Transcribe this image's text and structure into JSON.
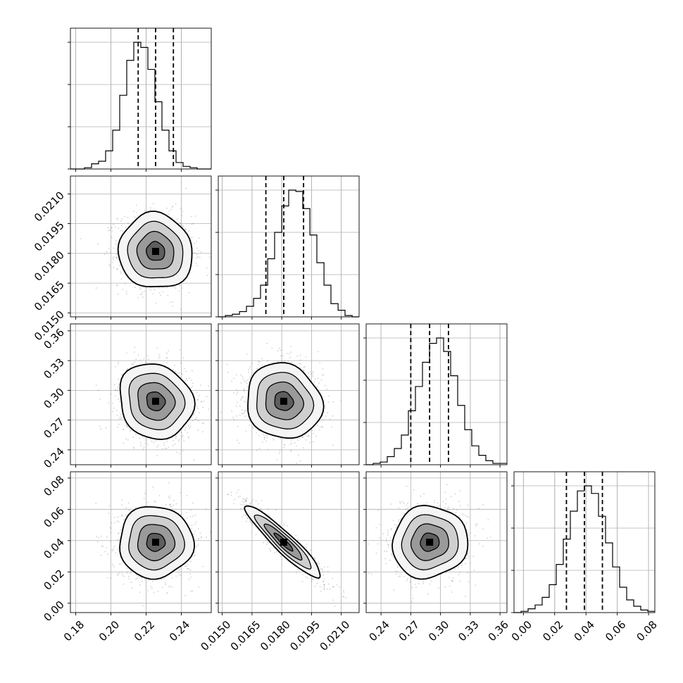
{
  "chart_data": {
    "type": "corner",
    "parameters": [
      {
        "range": [
          0.177,
          0.257
        ],
        "ticks": [
          0.18,
          0.2,
          0.22,
          0.24
        ],
        "tick_labels": [
          "0.18",
          "0.20",
          "0.22",
          "0.24"
        ],
        "quantiles": [
          0.2155,
          0.2254,
          0.2355
        ],
        "mean": 0.2254,
        "sd": 0.0105
      },
      {
        "range": [
          0.0148,
          0.0219
        ],
        "ticks": [
          0.015,
          0.0165,
          0.018,
          0.0195,
          0.021
        ],
        "tick_labels": [
          "0.0150",
          "0.0165",
          "0.0180",
          "0.0195",
          "0.0210"
        ],
        "quantiles": [
          0.0172,
          0.0181,
          0.0191
        ],
        "mean": 0.0181,
        "sd": 0.00095
      },
      {
        "range": [
          0.225,
          0.367
        ],
        "ticks": [
          0.24,
          0.27,
          0.3,
          0.33,
          0.36
        ],
        "tick_labels": [
          "0.24",
          "0.27",
          "0.30",
          "0.33",
          "0.36"
        ],
        "quantiles": [
          0.27,
          0.289,
          0.308
        ],
        "mean": 0.289,
        "sd": 0.019
      },
      {
        "range": [
          -0.006,
          0.084
        ],
        "ticks": [
          0.0,
          0.02,
          0.04,
          0.06,
          0.08
        ],
        "tick_labels": [
          "0.00",
          "0.02",
          "0.04",
          "0.06",
          "0.08"
        ],
        "quantiles": [
          0.0275,
          0.039,
          0.0505
        ],
        "mean": 0.039,
        "sd": 0.0115
      }
    ],
    "histograms": [
      {
        "param": 0,
        "bin_edges": [
          0.177,
          0.181,
          0.185,
          0.189,
          0.193,
          0.197,
          0.201,
          0.205,
          0.209,
          0.213,
          0.217,
          0.221,
          0.225,
          0.229,
          0.233,
          0.237,
          0.241,
          0.245,
          0.249,
          0.253,
          0.257
        ],
        "counts": [
          0,
          0,
          1,
          4,
          6,
          14,
          30,
          57,
          84,
          98,
          94,
          77,
          52,
          30,
          14,
          5,
          2,
          1,
          0,
          0
        ]
      },
      {
        "param": 1,
        "bin_edges": [
          0.0148,
          0.01516,
          0.01551,
          0.01587,
          0.01622,
          0.01658,
          0.01693,
          0.01729,
          0.01764,
          0.018,
          0.01835,
          0.01871,
          0.01906,
          0.01942,
          0.01977,
          0.02013,
          0.02048,
          0.02084,
          0.02119,
          0.02155,
          0.0219
        ],
        "counts": [
          0,
          1,
          2,
          4,
          8,
          14,
          24,
          44,
          64,
          84,
          96,
          95,
          82,
          62,
          41,
          24,
          10,
          5,
          1,
          0
        ]
      },
      {
        "param": 2,
        "bin_edges": [
          0.225,
          0.2321,
          0.2392,
          0.2463,
          0.2534,
          0.2605,
          0.2676,
          0.2747,
          0.2818,
          0.2889,
          0.296,
          0.3031,
          0.3102,
          0.3173,
          0.3244,
          0.3315,
          0.3386,
          0.3457,
          0.3528,
          0.3599,
          0.367
        ],
        "counts": [
          0,
          1,
          2,
          6,
          12,
          22,
          40,
          58,
          76,
          90,
          94,
          84,
          66,
          44,
          26,
          14,
          7,
          3,
          1,
          1
        ]
      },
      {
        "param": 3,
        "bin_edges": [
          -0.006,
          -0.0015,
          0.003,
          0.0075,
          0.012,
          0.0165,
          0.021,
          0.0255,
          0.03,
          0.0345,
          0.039,
          0.0435,
          0.048,
          0.0525,
          0.057,
          0.0615,
          0.066,
          0.0705,
          0.075,
          0.0795,
          0.084
        ],
        "counts": [
          0,
          1,
          3,
          6,
          12,
          22,
          38,
          58,
          80,
          96,
          100,
          94,
          76,
          55,
          36,
          20,
          10,
          5,
          2,
          1
        ]
      }
    ],
    "pairs": [
      {
        "x": 0,
        "y": 1,
        "correlation": -0.05
      },
      {
        "x": 0,
        "y": 2,
        "correlation": -0.12
      },
      {
        "x": 1,
        "y": 2,
        "correlation": -0.1
      },
      {
        "x": 0,
        "y": 3,
        "correlation": 0.0
      },
      {
        "x": 1,
        "y": 3,
        "correlation": -0.93
      },
      {
        "x": 2,
        "y": 3,
        "correlation": 0.05
      }
    ],
    "contour_levels_sigma": [
      0.5,
      1.0,
      1.5,
      2.0
    ],
    "grid": true,
    "colors": {
      "line": "#000000",
      "points": "#7f7f7f",
      "grid": "#b0b0b0"
    }
  }
}
